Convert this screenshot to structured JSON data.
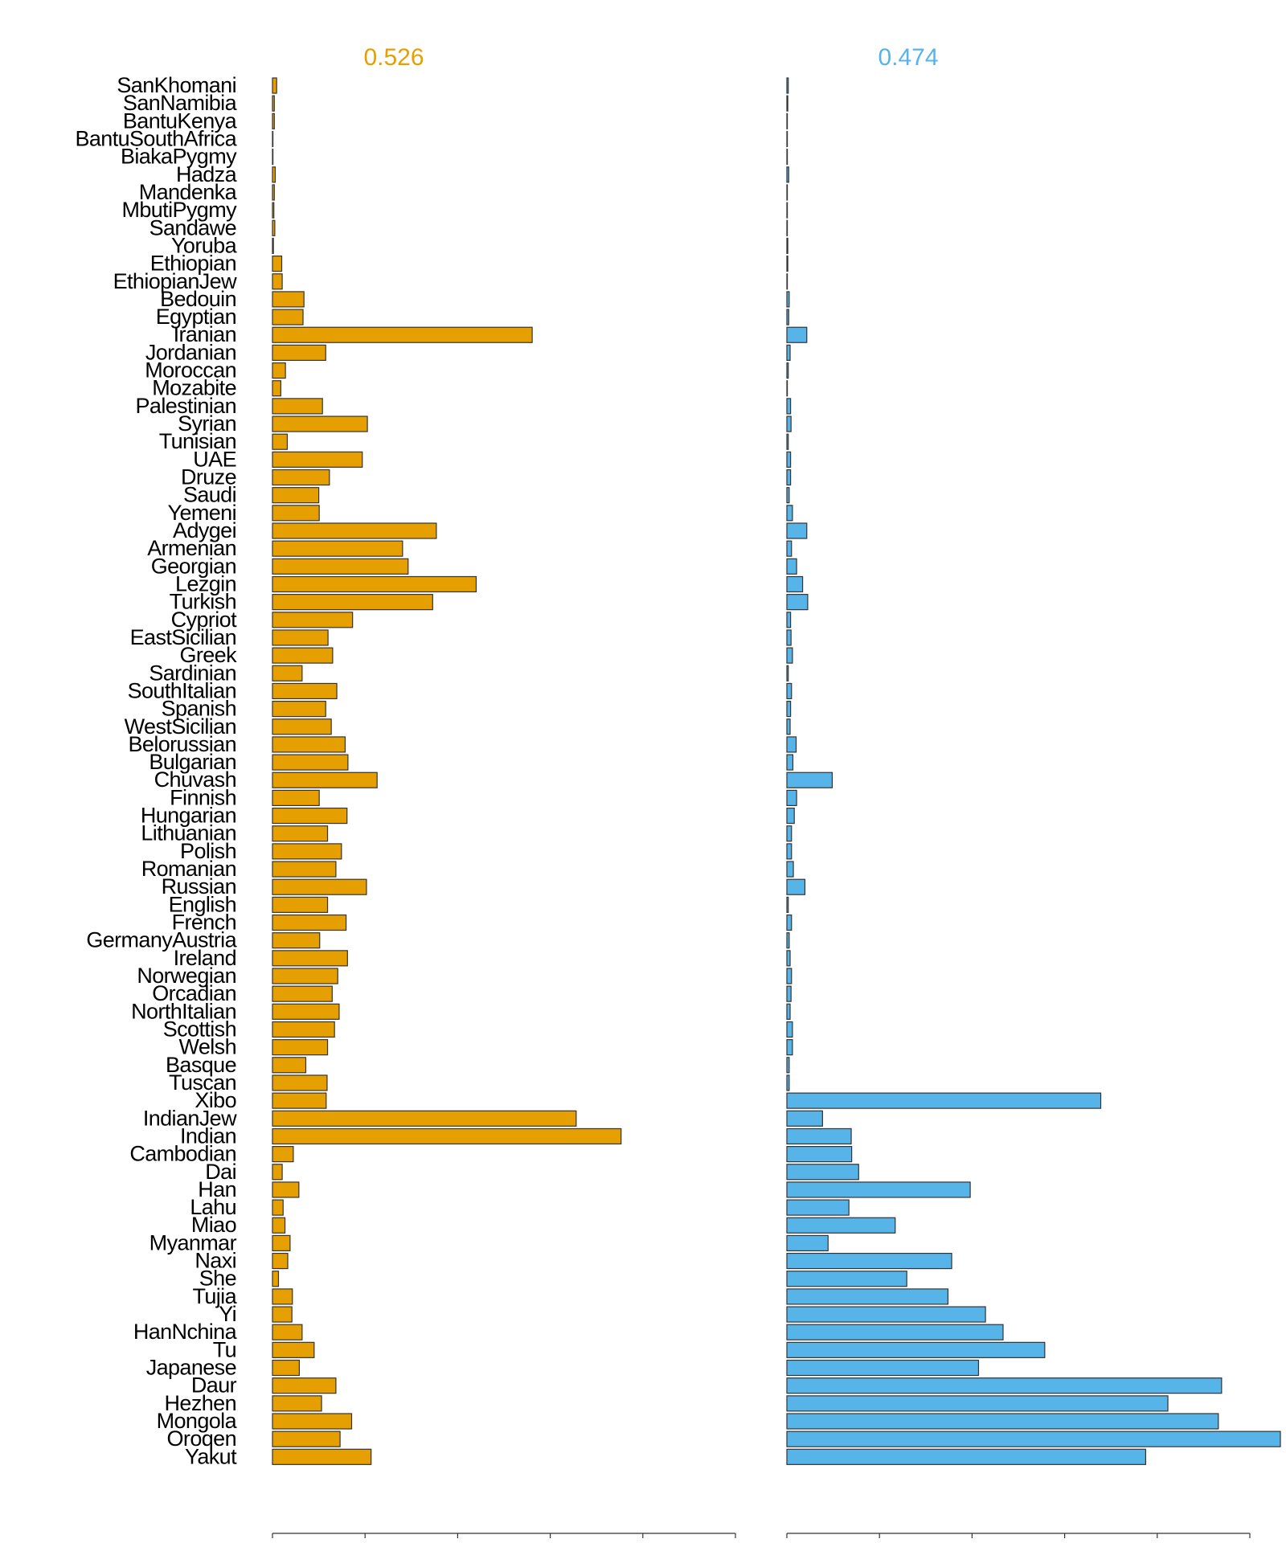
{
  "chart_data": {
    "type": "bar",
    "orientation": "horizontal",
    "categories": [
      "SanKhomani",
      "SanNamibia",
      "BantuKenya",
      "BantuSouthAfrica",
      "BiakaPygmy",
      "Hadza",
      "Mandenka",
      "MbutiPygmy",
      "Sandawe",
      "Yoruba",
      "Ethiopian",
      "EthiopianJew",
      "Bedouin",
      "Egyptian",
      "Iranian",
      "Jordanian",
      "Moroccan",
      "Mozabite",
      "Palestinian",
      "Syrian",
      "Tunisian",
      "UAE",
      "Druze",
      "Saudi",
      "Yemeni",
      "Adygei",
      "Armenian",
      "Georgian",
      "Lezgin",
      "Turkish",
      "Cypriot",
      "EastSicilian",
      "Greek",
      "Sardinian",
      "SouthItalian",
      "Spanish",
      "WestSicilian",
      "Belorussian",
      "Bulgarian",
      "Chuvash",
      "Finnish",
      "Hungarian",
      "Lithuanian",
      "Polish",
      "Romanian",
      "Russian",
      "English",
      "French",
      "GermanyAustria",
      "Ireland",
      "Norwegian",
      "Orcadian",
      "NorthItalian",
      "Scottish",
      "Welsh",
      "Basque",
      "Tuscan",
      "Xibo",
      "IndianJew",
      "Indian",
      "Cambodian",
      "Dai",
      "Han",
      "Lahu",
      "Miao",
      "Myanmar",
      "Naxi",
      "She",
      "Tujia",
      "Yi",
      "HanNchina",
      "Tu",
      "Japanese",
      "Daur",
      "Hezhen",
      "Mongola",
      "Oroqen",
      "Yakut"
    ],
    "panels": [
      {
        "name": "panel-1",
        "title": "0.526",
        "color": "#E69F00",
        "xlim": [
          0,
          0.1
        ],
        "xticks": [
          "0.00",
          "0.02",
          "0.04",
          "0.06",
          "0.08",
          "0.10"
        ],
        "values": [
          0.0009,
          0.0004,
          0.0004,
          0.0001,
          0.0001,
          0.0006,
          0.0004,
          0.0003,
          0.0005,
          0.0002,
          0.002,
          0.0021,
          0.0068,
          0.0066,
          0.0561,
          0.0115,
          0.0028,
          0.0018,
          0.0108,
          0.0205,
          0.0032,
          0.0194,
          0.0123,
          0.01,
          0.0101,
          0.0354,
          0.0281,
          0.0293,
          0.044,
          0.0346,
          0.0173,
          0.012,
          0.013,
          0.0064,
          0.0139,
          0.0115,
          0.0127,
          0.0157,
          0.0163,
          0.0226,
          0.0101,
          0.0161,
          0.0119,
          0.0149,
          0.0137,
          0.0203,
          0.0119,
          0.0159,
          0.0102,
          0.0162,
          0.0141,
          0.0129,
          0.0144,
          0.0134,
          0.0119,
          0.0072,
          0.0118,
          0.0116,
          0.0656,
          0.0753,
          0.0045,
          0.0021,
          0.0057,
          0.0023,
          0.0027,
          0.0038,
          0.0033,
          0.0013,
          0.0043,
          0.0042,
          0.0064,
          0.009,
          0.0058,
          0.0137,
          0.0106,
          0.0171,
          0.0146,
          0.0213
        ]
      },
      {
        "name": "panel-2",
        "title": "0.474",
        "color": "#56B4E9",
        "xlim": [
          0,
          0.1
        ],
        "xticks": [
          "0.00",
          "0.02",
          "0.04",
          "0.06",
          "0.08",
          "0.10"
        ],
        "values": [
          0.0003,
          0.0002,
          0.0001,
          0.0001,
          0.0001,
          0.0004,
          0.0001,
          0.0001,
          0.0001,
          0.0002,
          0.0002,
          0.0001,
          0.0005,
          0.0004,
          0.0043,
          0.0007,
          0.0003,
          0.0001,
          0.0008,
          0.0009,
          0.0003,
          0.0008,
          0.0008,
          0.0005,
          0.0012,
          0.0043,
          0.001,
          0.0021,
          0.0034,
          0.0045,
          0.0008,
          0.0009,
          0.0012,
          0.0003,
          0.001,
          0.0008,
          0.0007,
          0.002,
          0.0013,
          0.0098,
          0.0021,
          0.0016,
          0.001,
          0.001,
          0.0014,
          0.0039,
          0.0003,
          0.001,
          0.0005,
          0.0007,
          0.001,
          0.0009,
          0.0007,
          0.0012,
          0.0012,
          0.0005,
          0.0005,
          0.0678,
          0.0077,
          0.0139,
          0.014,
          0.0155,
          0.0396,
          0.0134,
          0.0234,
          0.0089,
          0.0356,
          0.0259,
          0.0348,
          0.0429,
          0.0467,
          0.0557,
          0.0414,
          0.0939,
          0.0823,
          0.0932,
          0.1066,
          0.0775
        ]
      }
    ],
    "title": "",
    "xlabel": "",
    "ylabel": "",
    "grid": false,
    "legend": "none"
  }
}
